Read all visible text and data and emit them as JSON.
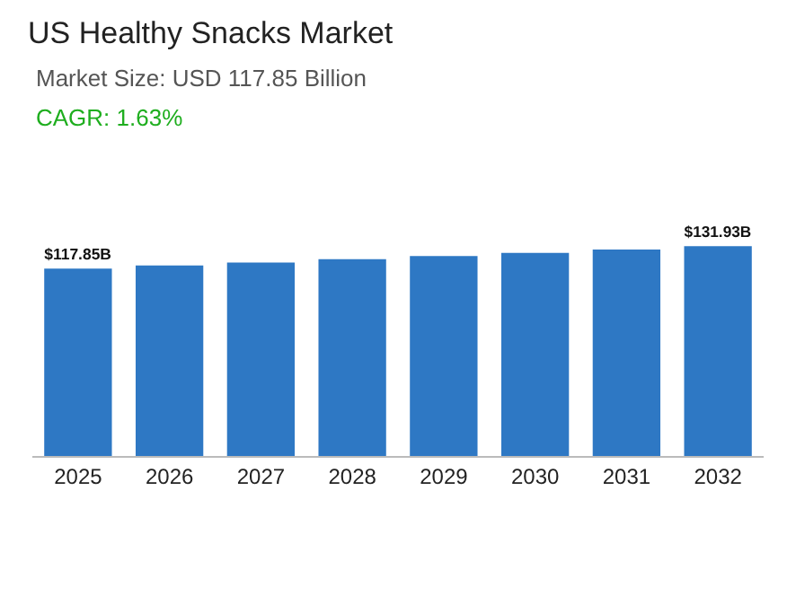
{
  "chart_data": {
    "type": "bar",
    "title": "US Healthy Snacks Market",
    "subtitle": "Market Size: USD 117.85 Billion",
    "annotations": [
      "CAGR: 1.63%"
    ],
    "categories": [
      "2025",
      "2026",
      "2027",
      "2028",
      "2029",
      "2030",
      "2031",
      "2032"
    ],
    "values": [
      117.85,
      119.77,
      121.72,
      123.71,
      125.72,
      127.77,
      129.86,
      131.93
    ],
    "value_labels": [
      "$117.85B",
      null,
      null,
      null,
      null,
      null,
      null,
      "$131.93B"
    ],
    "color": "#2e78c4",
    "grid": false,
    "legend": false
  }
}
